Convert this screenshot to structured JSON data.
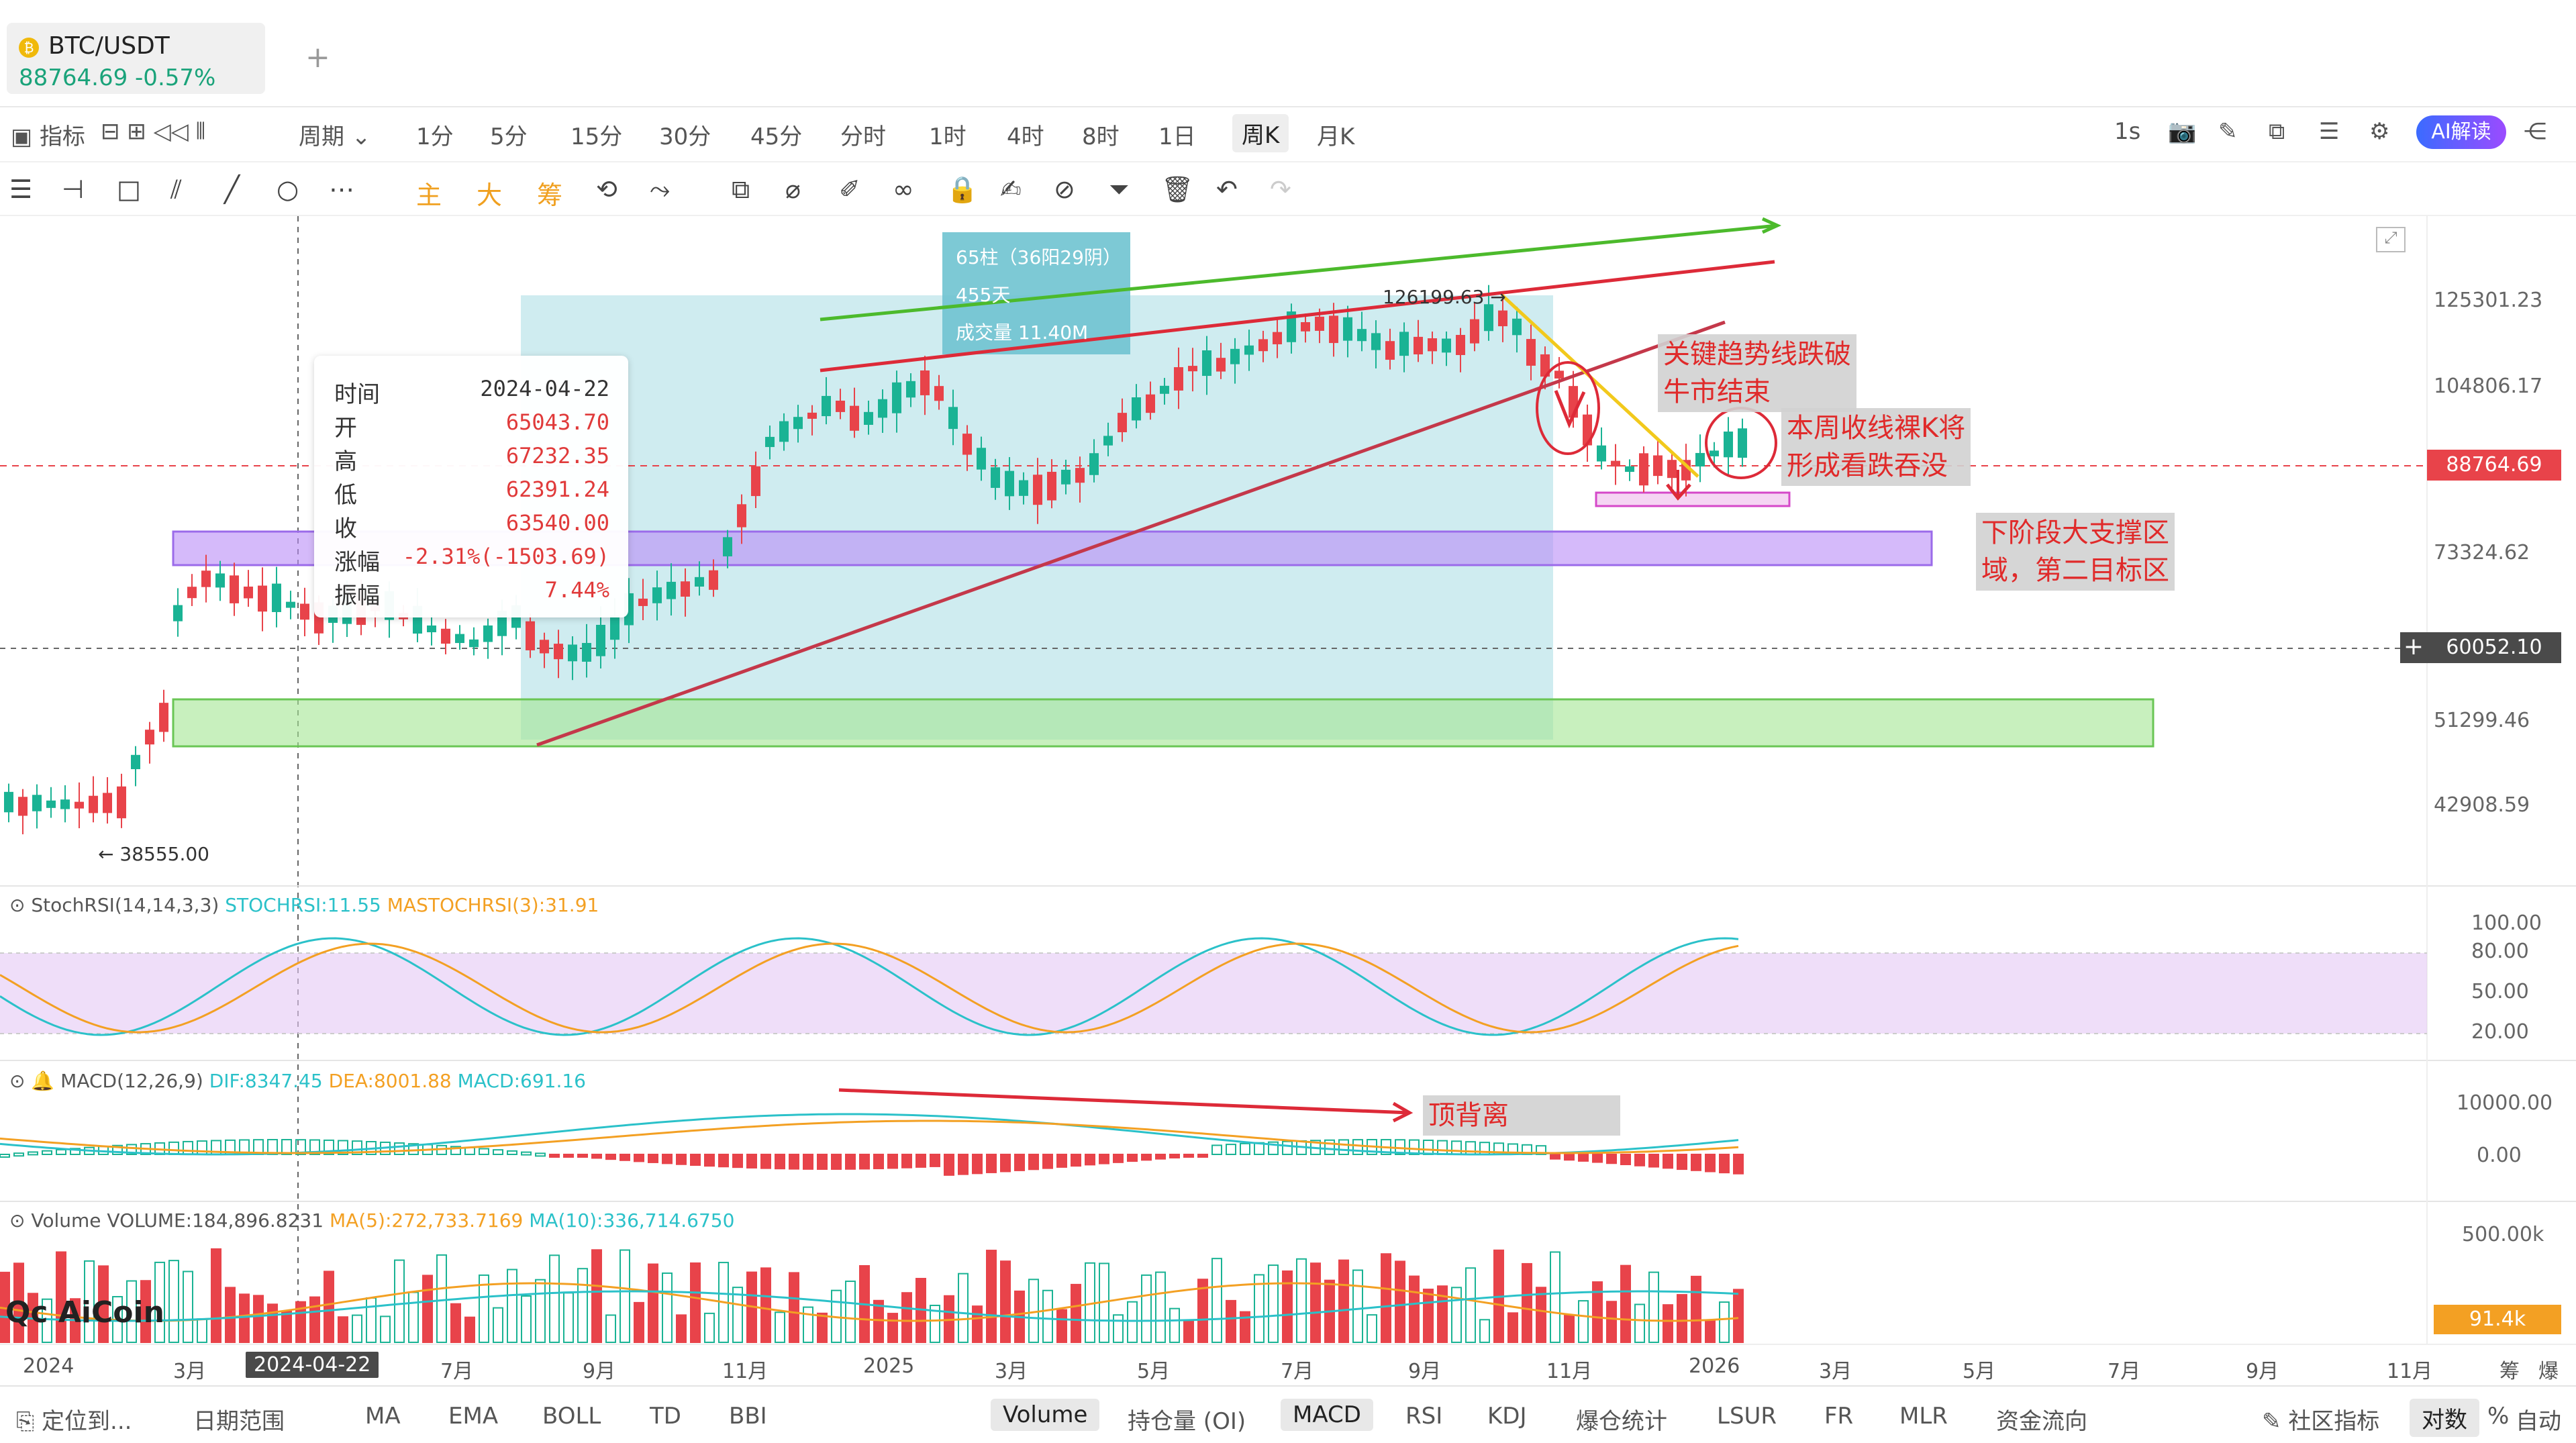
{
  "tab": {
    "symbol": "BTC/USDT",
    "price_change": "88764.69 -0.57%",
    "add_icon": "+"
  },
  "toolbar1": {
    "indicator": "指标",
    "period": "周期",
    "timeframes": [
      "1分",
      "5分",
      "15分",
      "30分",
      "45分",
      "分时",
      "1时",
      "4时",
      "8时",
      "1日",
      "周K",
      "月K"
    ],
    "active_timeframe": "周K",
    "speed": "1s",
    "ai_label": "AI解读"
  },
  "toolbar2": {
    "main_label": "主",
    "big_label": "大",
    "chip_label": "筹"
  },
  "tooltip": {
    "time_label": "时间",
    "time": "2024-04-22",
    "open_label": "开",
    "open": "65043.70",
    "high_label": "高",
    "high": "67232.35",
    "low_label": "低",
    "low": "62391.24",
    "close_label": "收",
    "close": "63540.00",
    "change_label": "涨幅",
    "change": "-2.31%(-1503.69)",
    "amp_label": "振幅",
    "amp": "7.44%"
  },
  "range_box": {
    "bars": "65柱（36阳29阴）",
    "days": "455天",
    "volume": "成交量 11.40M"
  },
  "labels": {
    "high_mark": "126199.63",
    "low_mark": "38555.00"
  },
  "price_axis": {
    "ticks": [
      "125301.23",
      "104806.17",
      "73324.62",
      "51299.46",
      "42908.59"
    ],
    "current": "88764.69",
    "crosshair": "60052.10"
  },
  "annotations": {
    "trend_break": [
      "关键趋势线跌破",
      "牛市结束"
    ],
    "weekly_close": [
      "本周收线裸K将",
      "形成看跌吞没"
    ],
    "support": [
      "下阶段大支撑区",
      "域，第二目标区"
    ],
    "divergence": "顶背离"
  },
  "stochrsi": {
    "name": "StochRSI(14,14,3,3)",
    "k": "STOCHRSI:11.55",
    "d": "MASTOCHRSI(3):31.91",
    "ticks": [
      "100.00",
      "80.00",
      "50.00",
      "20.00"
    ]
  },
  "macd": {
    "name": "MACD(12,26,9)",
    "dif": "DIF:8347.45",
    "dea": "DEA:8001.88",
    "macd": "MACD:691.16",
    "ticks": [
      "10000.00",
      "0.00"
    ]
  },
  "volume": {
    "name": "Volume",
    "value": "VOLUME:184,896.8231",
    "ma5": "MA(5):272,733.7169",
    "ma10": "MA(10):336,714.6750",
    "ticks": [
      "500.00k"
    ],
    "current": "91.4k"
  },
  "watermark": "AiCoin",
  "xaxis": {
    "labels": [
      "2024",
      "3月",
      "2024-04-22",
      "7月",
      "9月",
      "11月",
      "2025",
      "3月",
      "5月",
      "7月",
      "9月",
      "11月",
      "2026",
      "3月",
      "5月",
      "7月",
      "9月",
      "11月"
    ],
    "right": [
      "筹",
      "爆"
    ]
  },
  "bottombar": {
    "locate": "定位到...",
    "range": "日期范围",
    "main_indicators": [
      "MA",
      "EMA",
      "BOLL",
      "TD",
      "BBI"
    ],
    "sub_indicators": [
      "Volume",
      "持仓量 (OI)",
      "MACD",
      "RSI",
      "KDJ",
      "爆仓统计",
      "LSUR",
      "FR",
      "MLR",
      "资金流向"
    ],
    "active_sub": [
      "Volume",
      "MACD"
    ],
    "community": "社区指标",
    "log": "对数",
    "percent": "%",
    "auto": "自动"
  },
  "colors": {
    "up": "#1ab394",
    "down": "#e8434a",
    "accent": "#3b6bff",
    "purple_zone": "#a77bf3",
    "green_zone": "#9be37a"
  }
}
